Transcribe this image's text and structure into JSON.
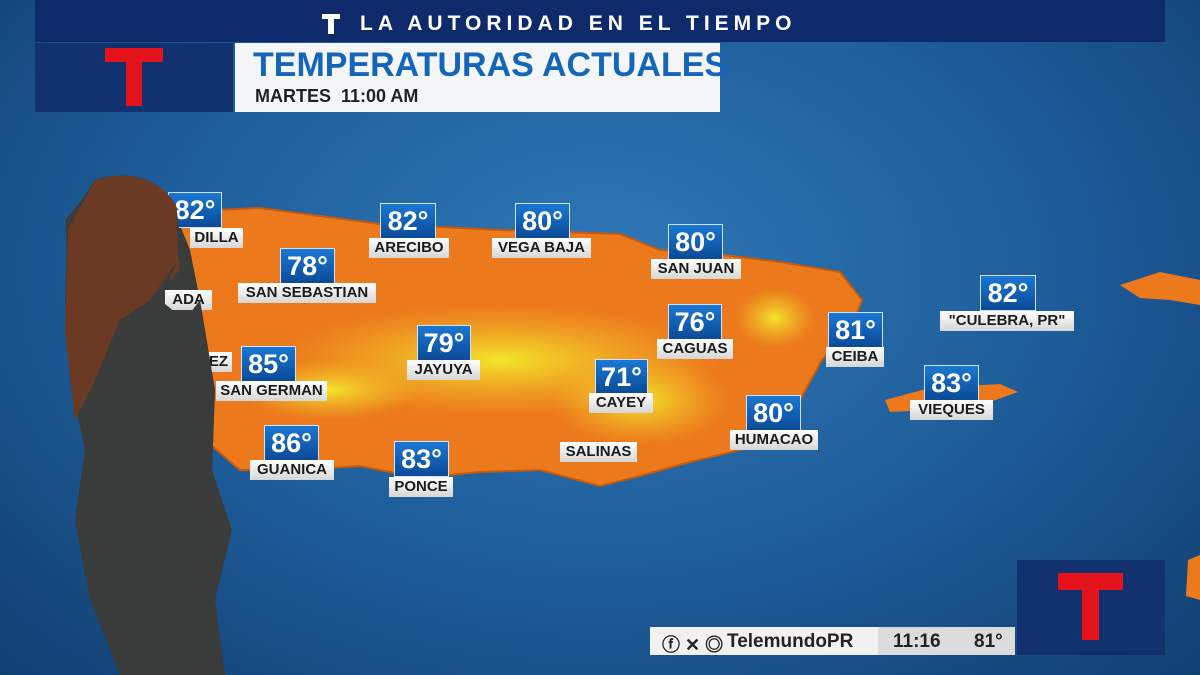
{
  "banner": {
    "title": "LA AUTORIDAD EN EL TIEMPO"
  },
  "header": {
    "title": "TEMPERATURAS ACTUALES",
    "subtitle": "MARTES  11:00 AM"
  },
  "stations": [
    {
      "temp": "82°",
      "label": "DILLA"
    },
    {
      "temp": "82°",
      "label": "ARECIBO"
    },
    {
      "temp": "80°",
      "label": "VEGA BAJA"
    },
    {
      "temp": "80°",
      "label": "SAN JUAN"
    },
    {
      "temp": "78°",
      "label": "SAN SEBASTIAN"
    },
    {
      "label": "ADA"
    },
    {
      "temp": "82°",
      "label": "\"CULEBRA, PR\""
    },
    {
      "temp": "76°",
      "label": "CAGUAS"
    },
    {
      "temp": "81°",
      "label": "CEIBA"
    },
    {
      "temp": "79°",
      "label": "JAYUYA"
    },
    {
      "label": "EZ"
    },
    {
      "temp": "85°",
      "label": "SAN GERMAN"
    },
    {
      "temp": "71°",
      "label": "CAYEY"
    },
    {
      "temp": "83°",
      "label": "VIEQUES"
    },
    {
      "temp": "80°",
      "label": "HUMACAO"
    },
    {
      "temp": "86°",
      "label": "GUANICA"
    },
    {
      "label": "SALINAS"
    },
    {
      "temp": "83°",
      "label": "PONCE"
    }
  ],
  "footer": {
    "handle": "TelemundoPR",
    "time": "11:16",
    "temp": "81°"
  }
}
